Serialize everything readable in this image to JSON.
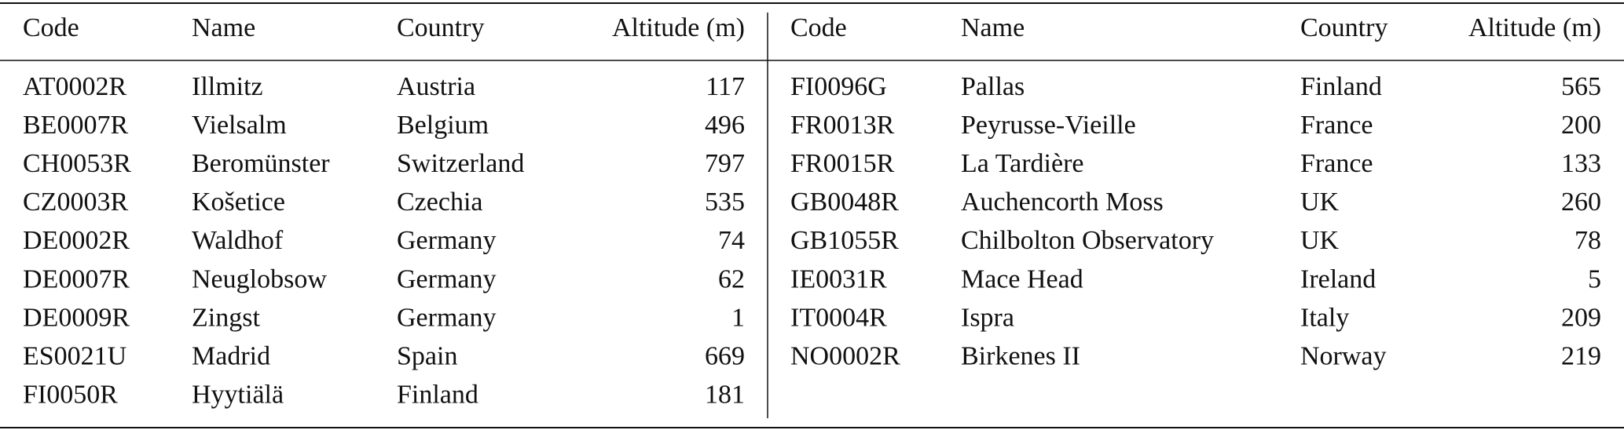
{
  "table": {
    "left": {
      "header": [
        "Code",
        "Name",
        "Country",
        "Altitude (m)"
      ],
      "rows": [
        [
          "AT0002R",
          "Illmitz",
          "Austria",
          117
        ],
        [
          "BE0007R",
          "Vielsalm",
          "Belgium",
          496
        ],
        [
          "CH0053R",
          "Beromünster",
          "Switzerland",
          797
        ],
        [
          "CZ0003R",
          "Košetice",
          "Czechia",
          535
        ],
        [
          "DE0002R",
          "Waldhof",
          "Germany",
          74
        ],
        [
          "DE0007R",
          "Neuglobsow",
          "Germany",
          62
        ],
        [
          "DE0009R",
          "Zingst",
          "Germany",
          1
        ],
        [
          "ES0021U",
          "Madrid",
          "Spain",
          669
        ],
        [
          "FI0050R",
          "Hyytiälä",
          "Finland",
          181
        ]
      ]
    },
    "right": {
      "header": [
        "Code",
        "Name",
        "Country",
        "Altitude (m)"
      ],
      "rows": [
        [
          "FI0096G",
          "Pallas",
          "Finland",
          565
        ],
        [
          "FR0013R",
          "Peyrusse-Vieille",
          "France",
          200
        ],
        [
          "FR0015R",
          "La Tardière",
          "France",
          133
        ],
        [
          "GB0048R",
          "Auchencorth Moss",
          "UK",
          260
        ],
        [
          "GB1055R",
          "Chilbolton Observatory",
          "UK",
          78
        ],
        [
          "IE0031R",
          "Mace Head",
          "Ireland",
          5
        ],
        [
          "IT0004R",
          "Ispra",
          "Italy",
          209
        ],
        [
          "NO0002R",
          "Birkenes II",
          "Norway",
          219
        ]
      ]
    }
  }
}
